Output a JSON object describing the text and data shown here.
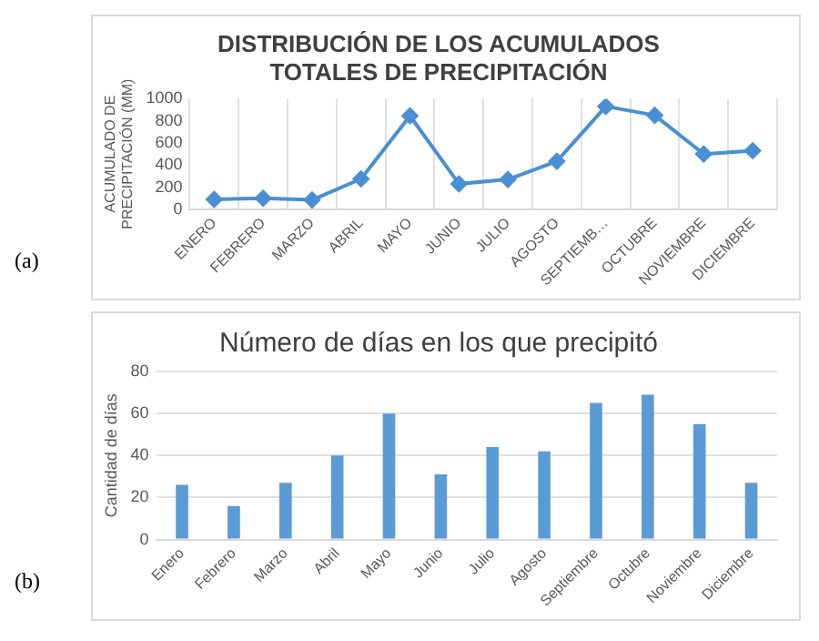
{
  "chart_data": [
    {
      "type": "line",
      "title": "DISTRIBUCIÓN DE LOS ACUMULADOS TOTALES DE PRECIPITACIÓN",
      "ylabel": "ACUMULADO DE PRECIPITACIÓN (MM)",
      "categories": [
        "ENERO",
        "FEBRERO",
        "MARZO",
        "ABRIL",
        "MAYO",
        "JUNIO",
        "JULIO",
        "AGOSTO",
        "SEPTIEMB…",
        "OCTUBRE",
        "NOVIEMBRE",
        "DICIEMBRE"
      ],
      "series": [
        {
          "color": "#4a8fd4",
          "values": [
            90,
            100,
            85,
            275,
            845,
            230,
            270,
            435,
            930,
            850,
            500,
            530
          ]
        }
      ],
      "ylim": [
        0,
        1000
      ],
      "yticks": [
        0,
        200,
        400,
        600,
        800,
        1000
      ],
      "grid": "x",
      "marker": "diamond",
      "line_style": "solid",
      "legend": false,
      "annotations": [
        "(a)"
      ]
    },
    {
      "type": "bar",
      "title": "Número de días en los que precipitó",
      "ylabel": "Cantidad de días",
      "categories": [
        "Enero",
        "Febrero",
        "Marzo",
        "Abril",
        "Mayo",
        "Junio",
        "Julio",
        "Agosto",
        "Septiembre",
        "Octubre",
        "Noviembre",
        "Diciembre"
      ],
      "series": [
        {
          "color": "#5b9bd5",
          "values": [
            26,
            16,
            27,
            40,
            60,
            31,
            44,
            42,
            65,
            69,
            55,
            27
          ]
        }
      ],
      "ylim": [
        0,
        80
      ],
      "yticks": [
        0,
        20,
        40,
        60,
        80
      ],
      "grid": "y",
      "legend": false,
      "annotations": [
        "(b)"
      ]
    }
  ]
}
